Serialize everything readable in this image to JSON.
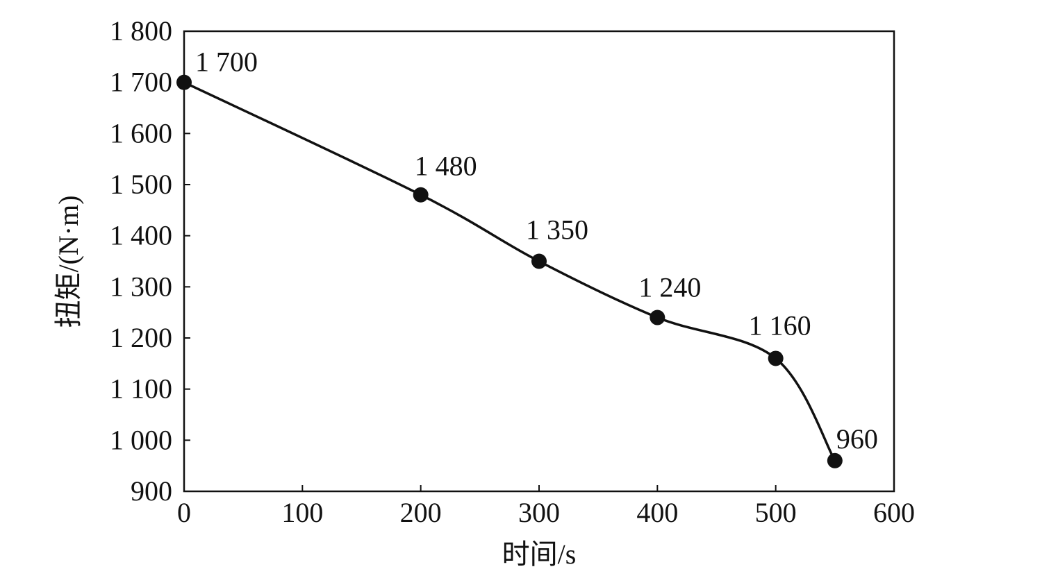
{
  "chart_data": {
    "type": "line",
    "xlabel": "时间/s",
    "ylabel": "扭矩/(N·m)",
    "xlim": [
      0,
      600
    ],
    "ylim": [
      900,
      1800
    ],
    "x_ticks": [
      0,
      100,
      200,
      300,
      400,
      500,
      600
    ],
    "x_tick_labels": [
      "0",
      "100",
      "200",
      "300",
      "400",
      "500",
      "600"
    ],
    "y_ticks": [
      900,
      1000,
      1100,
      1200,
      1300,
      1400,
      1500,
      1600,
      1700,
      1800
    ],
    "y_tick_labels": [
      "900",
      "1 000",
      "1 100",
      "1 200",
      "1 300",
      "1 400",
      "1 500",
      "1 600",
      "1 700",
      "1 800"
    ],
    "grid": false,
    "series": [
      {
        "x": [
          0,
          200,
          300,
          400,
          500,
          550
        ],
        "y": [
          1700,
          1480,
          1350,
          1240,
          1160,
          960
        ],
        "labels": [
          "1 700",
          "1 480",
          "1 350",
          "1 240",
          "1 160",
          "960"
        ],
        "color": "#111111"
      }
    ]
  }
}
